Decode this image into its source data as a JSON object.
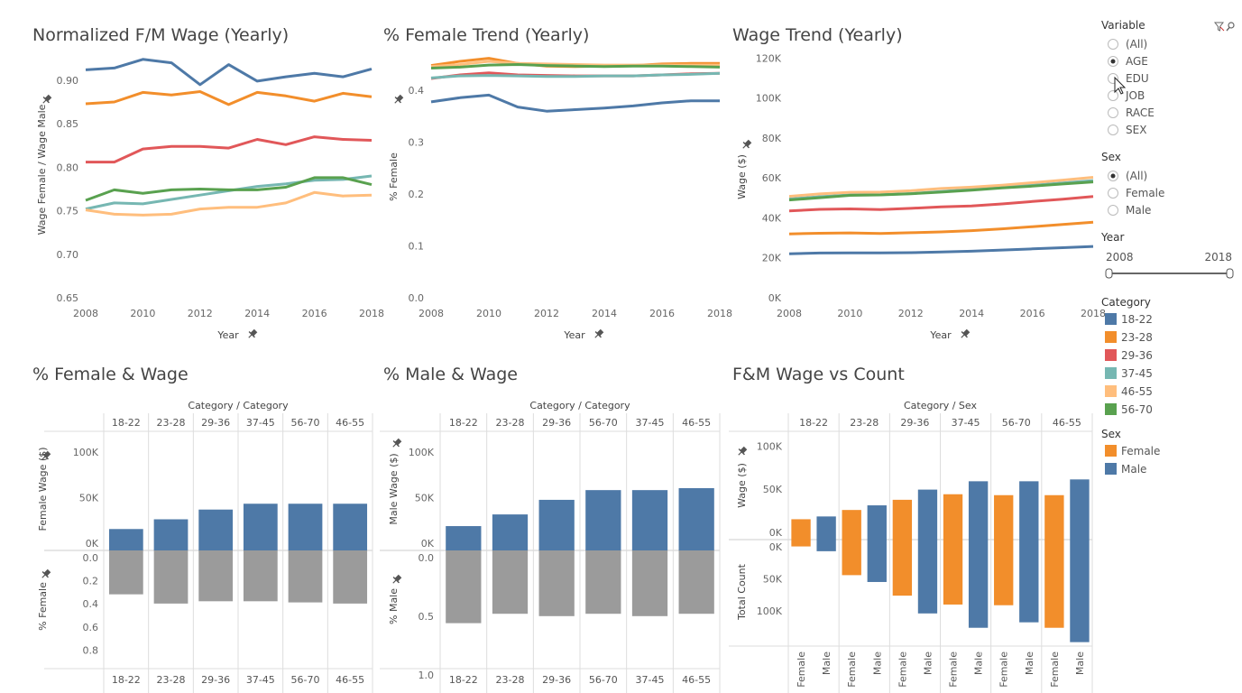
{
  "titles": {
    "normalized": "Normalized F/M Wage (Yearly)",
    "female_trend": "% Female Trend (Yearly)",
    "wage_trend": "Wage Trend (Yearly)",
    "female_wage": "% Female & Wage",
    "male_wage": "% Male & Wage",
    "fm_count": "F&M Wage vs Count"
  },
  "colors": {
    "18-22": "#4e79a7",
    "23-28": "#f28e2b",
    "29-36": "#e15759",
    "37-45": "#76b7b2",
    "46-55": "#ffbe7d",
    "56-70": "#59a14f",
    "Female": "#f28e2b",
    "Male": "#4e79a7",
    "pct": "#9b9b9b"
  },
  "filters": {
    "variable": {
      "label": "Variable",
      "options": [
        "(All)",
        "AGE",
        "EDU",
        "JOB",
        "RACE",
        "SEX"
      ],
      "selected": "AGE"
    },
    "sex": {
      "label": "Sex",
      "options": [
        "(All)",
        "Female",
        "Male"
      ],
      "selected": "(All)"
    },
    "year": {
      "label": "Year",
      "min": "2008",
      "max": "2018"
    },
    "category_legend": {
      "label": "Category",
      "items": [
        "18-22",
        "23-28",
        "29-36",
        "37-45",
        "46-55",
        "56-70"
      ]
    },
    "sex_legend": {
      "label": "Sex",
      "items": [
        "Female",
        "Male"
      ]
    }
  },
  "chart_data": [
    {
      "id": "normalized",
      "type": "line",
      "xlabel": "Year",
      "ylabel": "Wage Female / Wage Male",
      "x": [
        2008,
        2009,
        2010,
        2011,
        2012,
        2013,
        2014,
        2015,
        2016,
        2017,
        2018
      ],
      "xticks": [
        2008,
        2010,
        2012,
        2014,
        2016,
        2018
      ],
      "ylim": [
        0.65,
        0.93
      ],
      "yticks": [
        0.65,
        0.7,
        0.75,
        0.8,
        0.85,
        0.9
      ],
      "ytick_labels": [
        "0.65",
        "0.70",
        "0.75",
        "0.80",
        "0.85",
        "0.90"
      ],
      "series": [
        {
          "name": "18-22",
          "values": [
            0.912,
            0.914,
            0.924,
            0.92,
            0.895,
            0.918,
            0.899,
            0.904,
            0.908,
            0.904,
            0.913
          ]
        },
        {
          "name": "23-28",
          "values": [
            0.873,
            0.875,
            0.886,
            0.883,
            0.887,
            0.872,
            0.886,
            0.882,
            0.876,
            0.885,
            0.881
          ]
        },
        {
          "name": "29-36",
          "values": [
            0.806,
            0.806,
            0.821,
            0.824,
            0.824,
            0.822,
            0.832,
            0.826,
            0.835,
            0.832,
            0.831
          ]
        },
        {
          "name": "37-45",
          "values": [
            0.752,
            0.759,
            0.758,
            0.763,
            0.768,
            0.773,
            0.778,
            0.781,
            0.785,
            0.786,
            0.79
          ]
        },
        {
          "name": "46-55",
          "values": [
            0.751,
            0.746,
            0.745,
            0.746,
            0.752,
            0.754,
            0.754,
            0.759,
            0.771,
            0.767,
            0.768
          ]
        },
        {
          "name": "56-70",
          "values": [
            0.762,
            0.774,
            0.77,
            0.774,
            0.775,
            0.774,
            0.774,
            0.777,
            0.788,
            0.788,
            0.78
          ]
        }
      ]
    },
    {
      "id": "female_trend",
      "type": "line",
      "xlabel": "Year",
      "ylabel": "% Female",
      "x": [
        2008,
        2009,
        2010,
        2011,
        2012,
        2013,
        2014,
        2015,
        2016,
        2017,
        2018
      ],
      "xticks": [
        2008,
        2010,
        2012,
        2014,
        2016,
        2018
      ],
      "ylim": [
        0.0,
        0.47
      ],
      "yticks": [
        0.0,
        0.1,
        0.2,
        0.3,
        0.4
      ],
      "ytick_labels": [
        "0.0",
        "0.1",
        "0.2",
        "0.3",
        "0.4"
      ],
      "series": [
        {
          "name": "18-22",
          "values": [
            0.378,
            0.386,
            0.391,
            0.368,
            0.36,
            0.363,
            0.366,
            0.37,
            0.376,
            0.38,
            0.38
          ]
        },
        {
          "name": "23-28",
          "values": [
            0.448,
            0.456,
            0.462,
            0.452,
            0.447,
            0.446,
            0.447,
            0.448,
            0.451,
            0.452,
            0.452
          ]
        },
        {
          "name": "29-36",
          "values": [
            0.423,
            0.43,
            0.434,
            0.43,
            0.429,
            0.428,
            0.428,
            0.428,
            0.43,
            0.432,
            0.433
          ]
        },
        {
          "name": "37-45",
          "values": [
            0.424,
            0.428,
            0.429,
            0.428,
            0.427,
            0.427,
            0.428,
            0.428,
            0.43,
            0.431,
            0.433
          ]
        },
        {
          "name": "46-55",
          "values": [
            0.446,
            0.45,
            0.456,
            0.452,
            0.451,
            0.45,
            0.449,
            0.449,
            0.449,
            0.449,
            0.449
          ]
        },
        {
          "name": "56-70",
          "values": [
            0.443,
            0.445,
            0.449,
            0.45,
            0.448,
            0.447,
            0.446,
            0.447,
            0.447,
            0.446,
            0.445
          ]
        }
      ]
    },
    {
      "id": "wage_trend",
      "type": "line",
      "xlabel": "Year",
      "ylabel": "Wage ($)",
      "x": [
        2008,
        2009,
        2010,
        2011,
        2012,
        2013,
        2014,
        2015,
        2016,
        2017,
        2018
      ],
      "xticks": [
        2008,
        2010,
        2012,
        2014,
        2016,
        2018
      ],
      "ylim": [
        0,
        122000
      ],
      "yticks": [
        0,
        20000,
        40000,
        60000,
        80000,
        100000,
        120000
      ],
      "ytick_labels": [
        "0K",
        "20K",
        "40K",
        "60K",
        "80K",
        "100K",
        "120K"
      ],
      "series": [
        {
          "name": "18-22",
          "values": [
            22000,
            22400,
            22500,
            22500,
            22600,
            22900,
            23300,
            23900,
            24500,
            25100,
            25700
          ]
        },
        {
          "name": "23-28",
          "values": [
            32000,
            32300,
            32500,
            32200,
            32600,
            33000,
            33600,
            34500,
            35600,
            36700,
            37800
          ]
        },
        {
          "name": "29-36",
          "values": [
            43500,
            44300,
            44500,
            44200,
            44800,
            45500,
            46000,
            47000,
            48200,
            49400,
            50700
          ]
        },
        {
          "name": "37-45",
          "values": [
            49500,
            50600,
            51500,
            51600,
            52200,
            53200,
            54300,
            55300,
            56400,
            57500,
            58700
          ]
        },
        {
          "name": "46-55",
          "values": [
            50800,
            52000,
            52800,
            52900,
            53600,
            54700,
            55400,
            56400,
            57600,
            58900,
            60300
          ]
        },
        {
          "name": "56-70",
          "values": [
            49000,
            50100,
            51300,
            51500,
            52100,
            52900,
            53900,
            55000,
            55900,
            57000,
            58000
          ]
        }
      ]
    },
    {
      "id": "female_wage",
      "type": "bar",
      "header": "Category / Category",
      "categories": [
        "18-22",
        "23-28",
        "29-36",
        "37-45",
        "56-70",
        "46-55"
      ],
      "wage": {
        "ylabel": "Female Wage ($)",
        "values": [
          22000,
          32000,
          42000,
          48000,
          48000,
          48000
        ],
        "ylim": [
          0,
          115000
        ],
        "yticks": [
          0,
          50000,
          100000
        ],
        "ytick_labels": [
          "0K",
          "50K",
          "100K"
        ]
      },
      "pct": {
        "ylabel": "% Female",
        "values": [
          0.38,
          0.46,
          0.44,
          0.44,
          0.45,
          0.46
        ],
        "ylim": [
          0,
          1.0
        ],
        "yticks": [
          0.0,
          0.2,
          0.4,
          0.6,
          0.8
        ],
        "ytick_labels": [
          "0.0",
          "0.2",
          "0.4",
          "0.6",
          "0.8"
        ]
      }
    },
    {
      "id": "male_wage",
      "type": "bar",
      "header": "Category / Category",
      "categories": [
        "18-22",
        "23-28",
        "29-36",
        "56-70",
        "37-45",
        "46-55"
      ],
      "wage": {
        "ylabel": "Male Wage ($)",
        "values": [
          25000,
          37000,
          52000,
          62000,
          62000,
          64000
        ],
        "ylim": [
          0,
          115000
        ],
        "yticks": [
          0,
          50000,
          100000
        ],
        "ytick_labels": [
          "0K",
          "50K",
          "100K"
        ]
      },
      "pct": {
        "ylabel": "% Male",
        "values": [
          0.62,
          0.54,
          0.56,
          0.54,
          0.56,
          0.54
        ],
        "ylim": [
          0,
          1.0
        ],
        "yticks": [
          0.0,
          0.5,
          1.0
        ],
        "ytick_labels": [
          "0.0",
          "0.5",
          "1.0"
        ]
      }
    },
    {
      "id": "fm_count",
      "type": "bar",
      "header": "Category / Sex",
      "categories": [
        "18-22",
        "23-28",
        "29-36",
        "37-45",
        "56-70",
        "46-55"
      ],
      "sub_categories": [
        "Female",
        "Male"
      ],
      "wage": {
        "ylabel": "Wage ($)",
        "female": [
          22000,
          32000,
          43000,
          49000,
          48000,
          48000
        ],
        "male": [
          25000,
          37000,
          54000,
          63000,
          63000,
          65000
        ],
        "ylim": [
          0,
          115000
        ],
        "yticks": [
          0,
          50000,
          100000
        ],
        "ytick_labels": [
          "0K",
          "50K",
          "100K"
        ]
      },
      "count": {
        "ylabel": "Total Count",
        "female": [
          10000,
          52000,
          82000,
          95000,
          96000,
          129000
        ],
        "male": [
          17000,
          62000,
          108000,
          129000,
          121000,
          150000
        ],
        "ylim": [
          0,
          165000
        ],
        "yticks": [
          0,
          50000,
          100000
        ],
        "ytick_labels": [
          "0K",
          "50K",
          "100K"
        ]
      }
    }
  ]
}
